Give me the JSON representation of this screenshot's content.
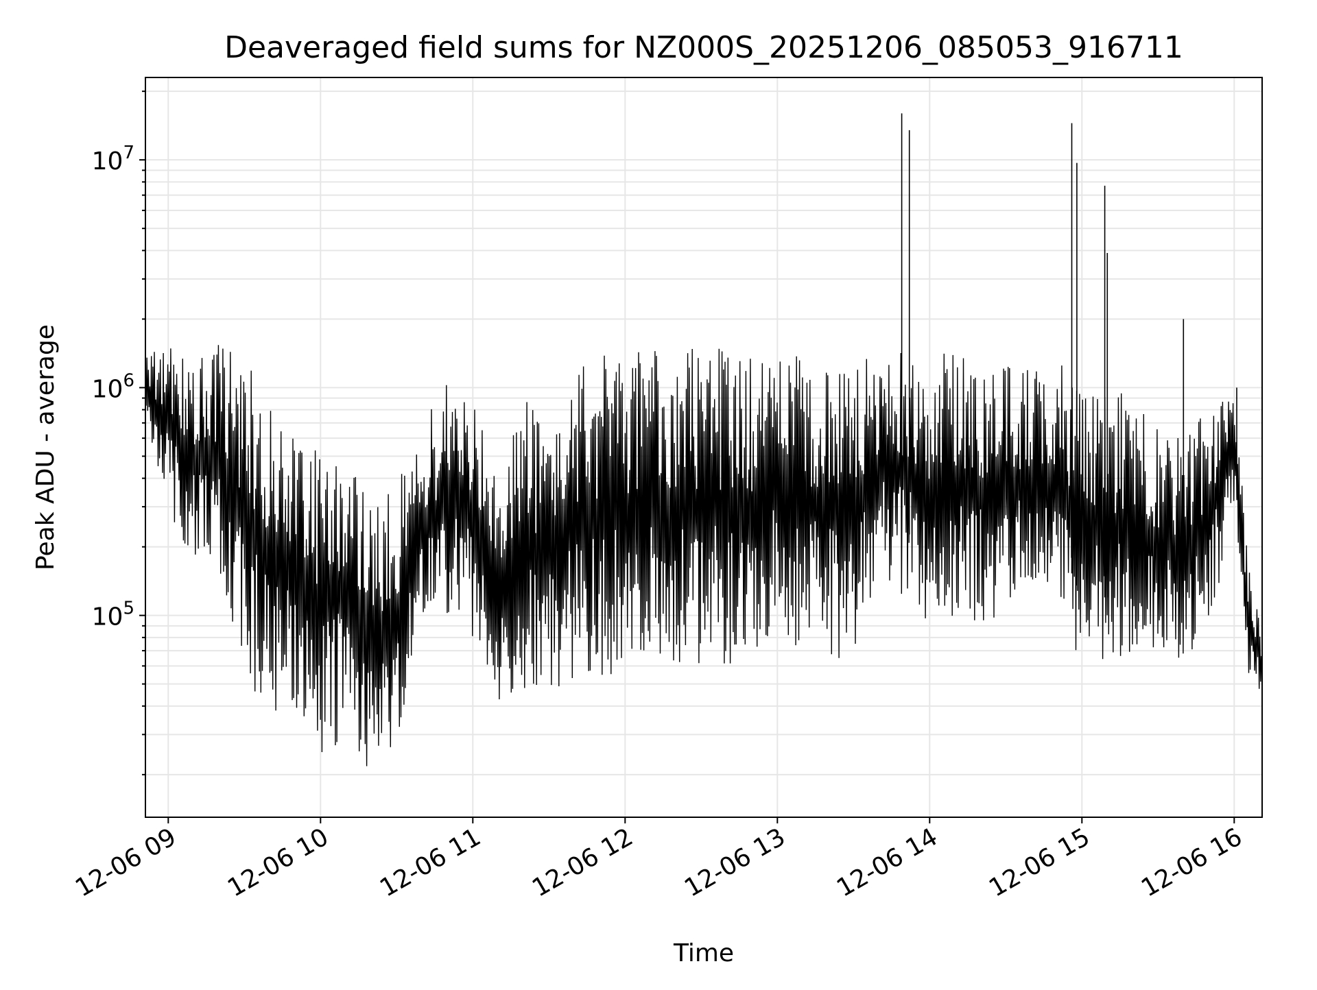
{
  "chart_data": {
    "type": "line",
    "title": "Deaveraged field sums for NZ000S_20251206_085053_916711",
    "xlabel": "Time",
    "ylabel": "Peak ADU - average",
    "yscale": "log",
    "grid": true,
    "line_color": "#000000",
    "grid_color": "#e6e6e6",
    "xlim": [
      "2025-12-06 08:51",
      "2025-12-06 16:11"
    ],
    "ylim": [
      13000,
      23000000
    ],
    "x_ticks": [
      {
        "value": "2025-12-06 09:00",
        "label": "12-06 09"
      },
      {
        "value": "2025-12-06 10:00",
        "label": "12-06 10"
      },
      {
        "value": "2025-12-06 11:00",
        "label": "12-06 11"
      },
      {
        "value": "2025-12-06 12:00",
        "label": "12-06 12"
      },
      {
        "value": "2025-12-06 13:00",
        "label": "12-06 13"
      },
      {
        "value": "2025-12-06 14:00",
        "label": "12-06 14"
      },
      {
        "value": "2025-12-06 15:00",
        "label": "12-06 15"
      },
      {
        "value": "2025-12-06 16:00",
        "label": "12-06 16"
      }
    ],
    "y_ticks": [
      {
        "value": 100000,
        "base": "10",
        "exp": "5"
      },
      {
        "value": 1000000,
        "base": "10",
        "exp": "6"
      },
      {
        "value": 10000000,
        "base": "10",
        "exp": "7"
      }
    ],
    "series_envelope": {
      "description_note": "",
      "x": [
        "2025-12-06 08:51",
        "2025-12-06 09:00",
        "2025-12-06 09:10",
        "2025-12-06 09:20",
        "2025-12-06 09:30",
        "2025-12-06 09:40",
        "2025-12-06 09:50",
        "2025-12-06 10:00",
        "2025-12-06 10:10",
        "2025-12-06 10:20",
        "2025-12-06 10:30",
        "2025-12-06 10:40",
        "2025-12-06 10:50",
        "2025-12-06 11:00",
        "2025-12-06 11:10",
        "2025-12-06 11:20",
        "2025-12-06 11:30",
        "2025-12-06 11:40",
        "2025-12-06 11:50",
        "2025-12-06 12:00",
        "2025-12-06 12:10",
        "2025-12-06 12:20",
        "2025-12-06 12:30",
        "2025-12-06 12:40",
        "2025-12-06 12:50",
        "2025-12-06 13:00",
        "2025-12-06 13:10",
        "2025-12-06 13:20",
        "2025-12-06 13:30",
        "2025-12-06 13:40",
        "2025-12-06 13:50",
        "2025-12-06 14:00",
        "2025-12-06 14:10",
        "2025-12-06 14:20",
        "2025-12-06 14:30",
        "2025-12-06 14:40",
        "2025-12-06 14:50",
        "2025-12-06 15:00",
        "2025-12-06 15:10",
        "2025-12-06 15:20",
        "2025-12-06 15:30",
        "2025-12-06 15:40",
        "2025-12-06 15:50",
        "2025-12-06 16:00",
        "2025-12-06 16:05",
        "2025-12-06 16:11"
      ],
      "upper": [
        1400000,
        1500000,
        1500000,
        1600000,
        1300000,
        1000000,
        700000,
        500000,
        600000,
        300000,
        400000,
        700000,
        1100000,
        900000,
        400000,
        900000,
        700000,
        1300000,
        1400000,
        1400000,
        1500000,
        1500000,
        1500000,
        1500000,
        1400000,
        1500000,
        1400000,
        1400000,
        1300000,
        1400000,
        1500000,
        1300000,
        1500000,
        1300000,
        1300000,
        1200000,
        1300000,
        1200000,
        1000000,
        900000,
        700000,
        600000,
        900000,
        1000000,
        200000,
        80000
      ],
      "lower": [
        700000,
        300000,
        150000,
        150000,
        50000,
        40000,
        30000,
        25000,
        25000,
        20000,
        25000,
        80000,
        100000,
        80000,
        40000,
        45000,
        45000,
        50000,
        50000,
        60000,
        70000,
        60000,
        60000,
        60000,
        60000,
        80000,
        70000,
        65000,
        65000,
        150000,
        120000,
        90000,
        100000,
        90000,
        100000,
        120000,
        110000,
        60000,
        60000,
        60000,
        60000,
        60000,
        80000,
        300000,
        50000,
        45000
      ]
    },
    "spikes": [
      {
        "x": "2025-12-06 13:49",
        "y": 16000000
      },
      {
        "x": "2025-12-06 13:52",
        "y": 13500000
      },
      {
        "x": "2025-12-06 14:56",
        "y": 14500000
      },
      {
        "x": "2025-12-06 14:58",
        "y": 9700000
      },
      {
        "x": "2025-12-06 15:09",
        "y": 7700000
      },
      {
        "x": "2025-12-06 15:10",
        "y": 3900000
      },
      {
        "x": "2025-12-06 15:40",
        "y": 2000000
      },
      {
        "x": "2025-12-06 16:01",
        "y": 1000000
      }
    ]
  }
}
